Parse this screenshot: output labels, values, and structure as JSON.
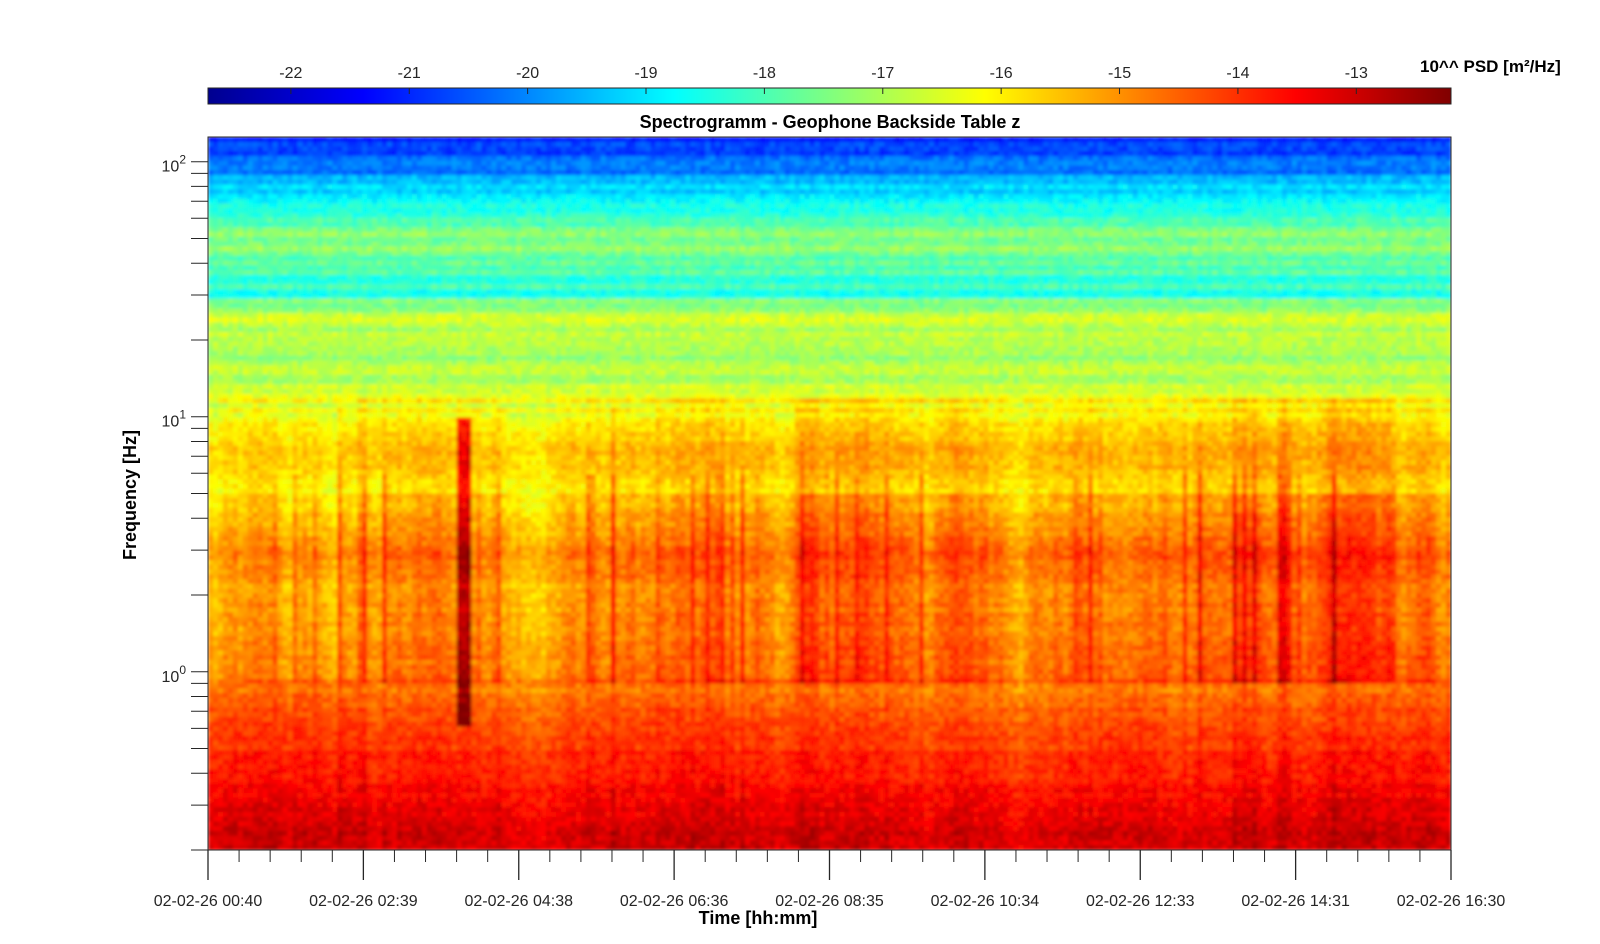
{
  "chart_data": {
    "type": "heatmap",
    "title": "Spectrogramm - Geophone Backside Table z",
    "xlabel": "Time [hh:mm]",
    "ylabel": "Frequency [Hz]",
    "x_ticks": [
      "02-02-26 00:40",
      "02-02-26 02:39",
      "02-02-26 04:38",
      "02-02-26 06:36",
      "02-02-26 08:35",
      "02-02-26 10:34",
      "02-02-26 12:33",
      "02-02-26 14:31",
      "02-02-26 16:30"
    ],
    "y_scale": "log",
    "ylim": [
      0.2,
      125
    ],
    "y_ticks": [
      {
        "value": 1,
        "base": "10",
        "exp": "0"
      },
      {
        "value": 10,
        "base": "10",
        "exp": "1"
      },
      {
        "value": 100,
        "base": "10",
        "exp": "2"
      }
    ],
    "colorbar": {
      "label": "10^^ PSD [m²/Hz]",
      "range": [
        -22.7,
        -12.2
      ],
      "ticks": [
        "-22",
        "-21",
        "-20",
        "-19",
        "-18",
        "-17",
        "-16",
        "-15",
        "-14",
        "-13"
      ],
      "colormap": "jet"
    },
    "profile_log_psd_vs_freq": [
      {
        "f": 0.2,
        "v": -13.0
      },
      {
        "f": 0.3,
        "v": -13.4
      },
      {
        "f": 0.5,
        "v": -14.0
      },
      {
        "f": 0.8,
        "v": -14.6
      },
      {
        "f": 1.0,
        "v": -15.2
      },
      {
        "f": 2.0,
        "v": -15.6
      },
      {
        "f": 3.0,
        "v": -15.2
      },
      {
        "f": 5.0,
        "v": -16.2
      },
      {
        "f": 7.0,
        "v": -15.7
      },
      {
        "f": 10.0,
        "v": -16.4
      },
      {
        "f": 20.0,
        "v": -17.2
      },
      {
        "f": 25.0,
        "v": -16.5
      },
      {
        "f": 30.0,
        "v": -18.3
      },
      {
        "f": 50.0,
        "v": -17.4
      },
      {
        "f": 70.0,
        "v": -18.6
      },
      {
        "f": 100.0,
        "v": -20.6
      },
      {
        "f": 125.0,
        "v": -21.0
      }
    ]
  }
}
